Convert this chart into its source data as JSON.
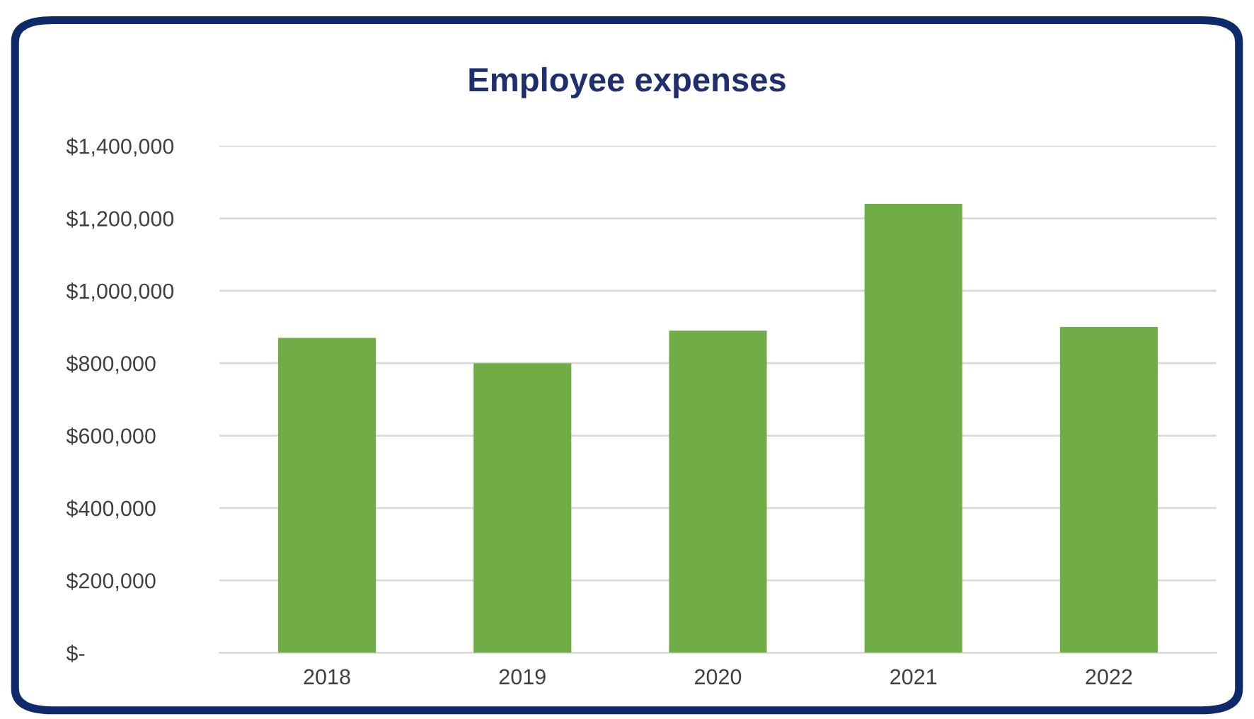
{
  "chart_data": {
    "type": "bar",
    "title": "Employee expenses",
    "categories": [
      "2018",
      "2019",
      "2020",
      "2021",
      "2022"
    ],
    "values": [
      870000,
      800000,
      890000,
      1240000,
      900000
    ],
    "color": "#70ad47",
    "ylim": [
      0,
      1400000
    ],
    "yticks": [
      {
        "value": 0,
        "label": "$-"
      },
      {
        "value": 200000,
        "label": "$200,000"
      },
      {
        "value": 400000,
        "label": "$400,000"
      },
      {
        "value": 600000,
        "label": "$600,000"
      },
      {
        "value": 800000,
        "label": "$800,000"
      },
      {
        "value": 1000000,
        "label": "$1,000,000"
      },
      {
        "value": 1200000,
        "label": "$1,200,000"
      },
      {
        "value": 1400000,
        "label": "$1,400,000"
      }
    ],
    "grid": "y",
    "legend": false
  }
}
